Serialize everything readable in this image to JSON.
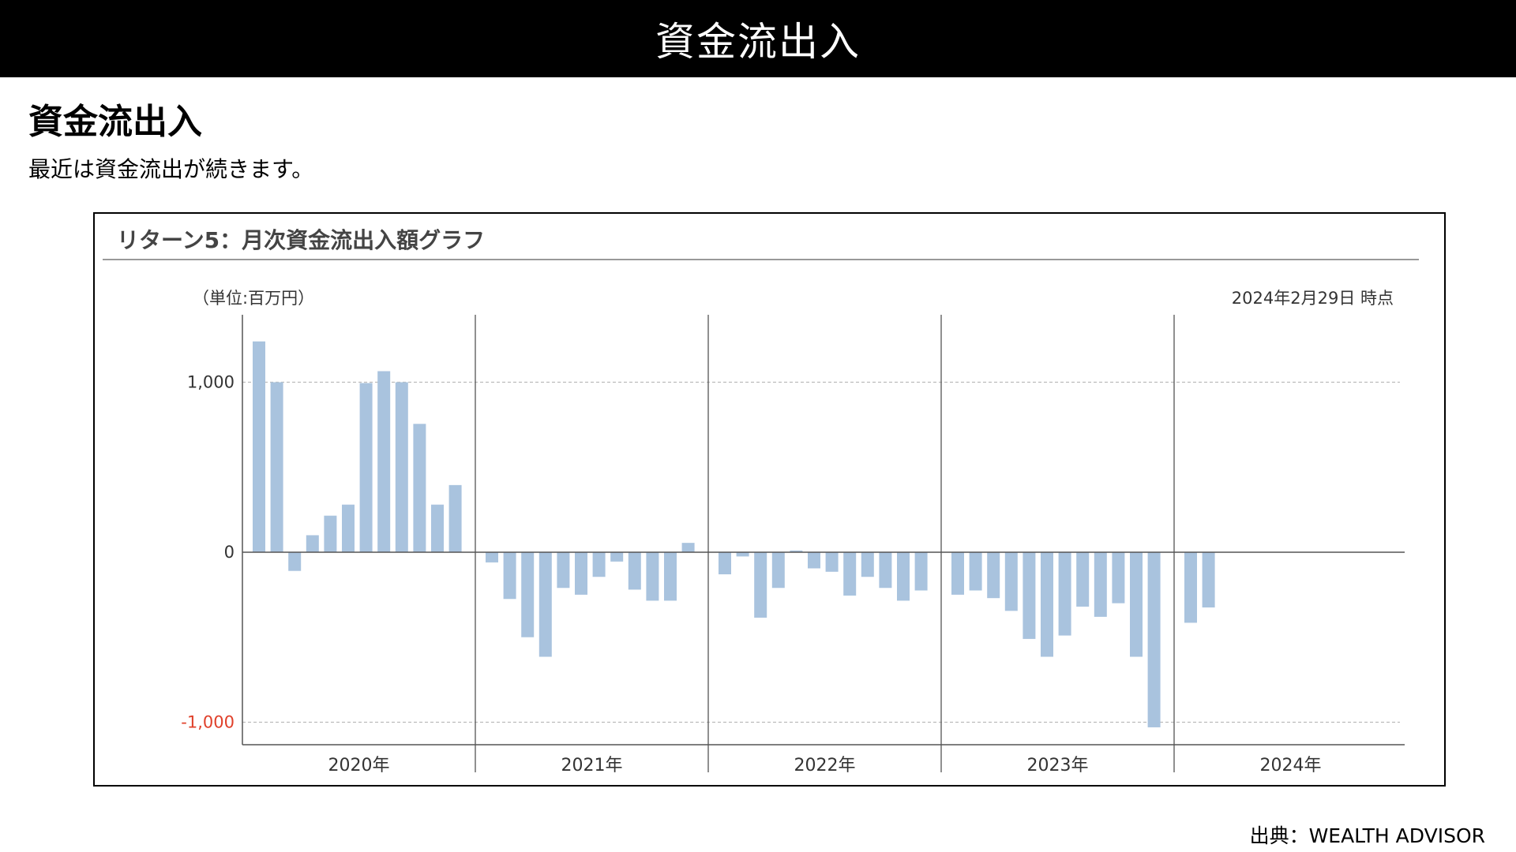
{
  "banner": {
    "title": "資金流出入"
  },
  "section": {
    "heading": "資金流出入",
    "description": "最近は資金流出が続きます。"
  },
  "chart": {
    "title": "リターン5：月次資金流出入額グラフ",
    "unit_label": "（単位:百万円）",
    "as_of": "2024年2月29日 時点"
  },
  "source": "出典：WEALTH ADVISOR",
  "colors": {
    "bar": "#a9c3de",
    "negative_tick": "#e0402a",
    "axis": "#555555",
    "grid": "#bbbbbb"
  },
  "chart_data": {
    "type": "bar",
    "ylim": [
      -1150,
      1350
    ],
    "y_ticks": [
      {
        "value": 1000,
        "label": "1,000",
        "grid": true,
        "negative": false
      },
      {
        "value": 0,
        "label": "0",
        "grid": false,
        "negative": false
      },
      {
        "value": -1000,
        "label": "-1,000",
        "grid": true,
        "negative": true
      }
    ],
    "year_groups": [
      {
        "label": "2020年",
        "values": [
          1240,
          1000,
          -110,
          100,
          215,
          280,
          995,
          1065,
          1000,
          755,
          280,
          395
        ]
      },
      {
        "label": "2021年",
        "values": [
          -60,
          -275,
          -500,
          -615,
          -210,
          -250,
          -145,
          -55,
          -220,
          -285,
          -285,
          55
        ]
      },
      {
        "label": "2022年",
        "values": [
          -130,
          -25,
          -385,
          -210,
          10,
          -95,
          -115,
          -255,
          -145,
          -210,
          -285,
          -225
        ]
      },
      {
        "label": "2023年",
        "values": [
          -250,
          -225,
          -270,
          -345,
          -510,
          -615,
          -490,
          -320,
          -380,
          -300,
          -615,
          -1030
        ]
      },
      {
        "label": "2024年",
        "values": [
          -415,
          -325
        ]
      }
    ]
  }
}
